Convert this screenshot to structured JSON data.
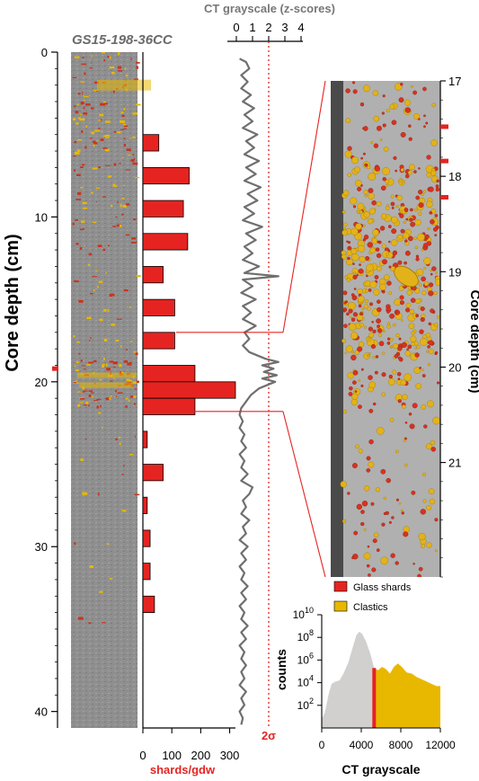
{
  "figure": {
    "core_label": "GS15-198-36CC",
    "depth_axis": {
      "label": "Core depth (cm)",
      "ticks": [
        "0",
        "10",
        "20",
        "30",
        "40"
      ],
      "range": [
        0,
        41
      ],
      "marker_depth": 19.2
    },
    "shards_axis": {
      "label": "shards/gdw",
      "ticks": [
        "0",
        "100",
        "200",
        "300"
      ],
      "range": [
        0,
        320
      ]
    },
    "ct_axis": {
      "label": "CT grayscale (z-scores)",
      "ticks": [
        "0",
        "1",
        "2",
        "3",
        "4"
      ],
      "range": [
        0,
        4
      ],
      "threshold_label": "2σ",
      "threshold_value": 2
    },
    "zoom": {
      "depth_label": "Core depth (cm)",
      "ticks": [
        "17",
        "18",
        "19",
        "20",
        "21"
      ],
      "range": [
        17,
        22.2
      ],
      "markers": [
        17.48,
        17.84,
        18.22
      ],
      "connector_depths": [
        17.0,
        21.8
      ]
    },
    "histogram": {
      "legend": [
        {
          "label": "Glass shards",
          "color": "#e52421"
        },
        {
          "label": "Clastics",
          "color": "#e8b800"
        }
      ],
      "ylabel": "counts",
      "xlabel": "CT grayscale",
      "xticks": [
        "0",
        "4000",
        "8000",
        "12000"
      ],
      "ybase": "10",
      "yexps": [
        "2",
        "4",
        "6",
        "8",
        "10"
      ],
      "xrange": [
        0,
        12000
      ],
      "glass_threshold": 5300,
      "curve": [
        [
          0,
          0.8
        ],
        [
          300,
          1.3
        ],
        [
          700,
          3.0
        ],
        [
          1000,
          3.9
        ],
        [
          1400,
          4.1
        ],
        [
          1800,
          4.2
        ],
        [
          2200,
          4.8
        ],
        [
          2700,
          5.8
        ],
        [
          3100,
          7.0
        ],
        [
          3500,
          8.2
        ],
        [
          3800,
          8.5
        ],
        [
          4100,
          8.3
        ],
        [
          4500,
          7.6
        ],
        [
          4900,
          6.6
        ],
        [
          5300,
          5.3
        ],
        [
          5700,
          5.1
        ],
        [
          6100,
          5.4
        ],
        [
          6500,
          5.2
        ],
        [
          6900,
          4.8
        ],
        [
          7300,
          5.4
        ],
        [
          7700,
          5.7
        ],
        [
          8100,
          5.4
        ],
        [
          8600,
          4.9
        ],
        [
          9100,
          4.8
        ],
        [
          9600,
          4.5
        ],
        [
          10100,
          4.3
        ],
        [
          10600,
          4.1
        ],
        [
          11100,
          3.9
        ],
        [
          11600,
          3.7
        ],
        [
          12000,
          3.7
        ]
      ]
    }
  },
  "chart_data": [
    {
      "type": "bar",
      "orientation": "horizontal",
      "title": "",
      "xlabel": "shards/gdw",
      "ylabel": "Core depth (cm)",
      "xlim": [
        0,
        320
      ],
      "ylim": [
        0,
        41
      ],
      "bars": [
        {
          "from": 5.0,
          "to": 6.0,
          "value": 55
        },
        {
          "from": 7.0,
          "to": 8.0,
          "value": 160
        },
        {
          "from": 9.0,
          "to": 10.0,
          "value": 140
        },
        {
          "from": 11.0,
          "to": 12.0,
          "value": 155
        },
        {
          "from": 13.0,
          "to": 14.0,
          "value": 70
        },
        {
          "from": 15.0,
          "to": 16.0,
          "value": 110
        },
        {
          "from": 17.0,
          "to": 18.0,
          "value": 110
        },
        {
          "from": 19.0,
          "to": 20.0,
          "value": 180
        },
        {
          "from": 20.0,
          "to": 21.0,
          "value": 320
        },
        {
          "from": 21.0,
          "to": 22.0,
          "value": 180
        },
        {
          "from": 23.0,
          "to": 24.0,
          "value": 15
        },
        {
          "from": 25.0,
          "to": 26.0,
          "value": 70
        },
        {
          "from": 27.0,
          "to": 28.0,
          "value": 15
        },
        {
          "from": 29.0,
          "to": 30.0,
          "value": 25
        },
        {
          "from": 31.0,
          "to": 32.0,
          "value": 25
        },
        {
          "from": 33.0,
          "to": 34.0,
          "value": 40
        }
      ]
    },
    {
      "type": "line",
      "title": "",
      "xlabel": "CT grayscale (z-scores)",
      "ylabel": "Core depth (cm)",
      "xlim": [
        0,
        4
      ],
      "ylim": [
        0,
        41
      ],
      "threshold": 2,
      "points": [
        [
          0.2,
          0.4
        ],
        [
          0.6,
          0.6
        ],
        [
          0.8,
          1.0
        ],
        [
          0.3,
          1.4
        ],
        [
          0.7,
          1.8
        ],
        [
          0.3,
          2.2
        ],
        [
          0.9,
          2.6
        ],
        [
          0.4,
          3.0
        ],
        [
          1.1,
          3.4
        ],
        [
          0.5,
          3.8
        ],
        [
          1.0,
          4.2
        ],
        [
          0.4,
          4.6
        ],
        [
          1.3,
          5.0
        ],
        [
          0.6,
          5.4
        ],
        [
          1.1,
          5.8
        ],
        [
          0.5,
          6.2
        ],
        [
          1.4,
          6.6
        ],
        [
          0.6,
          7.0
        ],
        [
          1.2,
          7.4
        ],
        [
          0.5,
          7.8
        ],
        [
          1.5,
          8.2
        ],
        [
          0.7,
          8.6
        ],
        [
          1.3,
          9.0
        ],
        [
          0.5,
          9.4
        ],
        [
          1.1,
          9.8
        ],
        [
          0.4,
          10.2
        ],
        [
          1.6,
          10.6
        ],
        [
          0.6,
          11.0
        ],
        [
          1.2,
          11.4
        ],
        [
          0.5,
          11.8
        ],
        [
          1.0,
          12.2
        ],
        [
          0.4,
          12.6
        ],
        [
          1.4,
          13.0
        ],
        [
          0.5,
          13.4
        ],
        [
          2.6,
          13.6
        ],
        [
          0.4,
          13.8
        ],
        [
          1.0,
          14.2
        ],
        [
          0.3,
          14.6
        ],
        [
          1.2,
          15.0
        ],
        [
          0.4,
          15.4
        ],
        [
          0.9,
          15.8
        ],
        [
          0.4,
          16.2
        ],
        [
          1.2,
          16.6
        ],
        [
          0.5,
          17.0
        ],
        [
          0.8,
          17.4
        ],
        [
          0.4,
          17.8
        ],
        [
          0.8,
          18.2
        ],
        [
          1.8,
          18.6
        ],
        [
          2.6,
          18.8
        ],
        [
          1.6,
          19.0
        ],
        [
          2.3,
          19.2
        ],
        [
          1.7,
          19.4
        ],
        [
          2.5,
          19.6
        ],
        [
          1.6,
          19.8
        ],
        [
          2.4,
          20.0
        ],
        [
          1.4,
          20.4
        ],
        [
          0.9,
          20.8
        ],
        [
          0.6,
          21.2
        ],
        [
          0.3,
          21.6
        ],
        [
          0.2,
          22.0
        ],
        [
          0.4,
          22.4
        ],
        [
          0.2,
          22.8
        ],
        [
          0.5,
          23.2
        ],
        [
          0.3,
          23.6
        ],
        [
          0.6,
          24.0
        ],
        [
          0.2,
          24.4
        ],
        [
          0.5,
          24.8
        ],
        [
          0.3,
          25.2
        ],
        [
          0.7,
          25.6
        ],
        [
          0.3,
          26.0
        ],
        [
          1.0,
          26.4
        ],
        [
          0.8,
          26.8
        ],
        [
          0.4,
          27.2
        ],
        [
          0.6,
          27.6
        ],
        [
          0.3,
          28.0
        ],
        [
          0.8,
          28.4
        ],
        [
          0.4,
          28.8
        ],
        [
          0.6,
          29.2
        ],
        [
          0.2,
          29.6
        ],
        [
          0.7,
          30.0
        ],
        [
          0.3,
          30.4
        ],
        [
          0.6,
          30.8
        ],
        [
          0.2,
          31.2
        ],
        [
          0.5,
          31.6
        ],
        [
          0.3,
          32.0
        ],
        [
          0.7,
          32.4
        ],
        [
          0.3,
          32.8
        ],
        [
          0.6,
          33.2
        ],
        [
          0.2,
          33.6
        ],
        [
          0.5,
          34.0
        ],
        [
          0.3,
          34.4
        ],
        [
          0.7,
          34.8
        ],
        [
          0.3,
          35.2
        ],
        [
          0.6,
          35.6
        ],
        [
          0.2,
          36.0
        ],
        [
          0.5,
          36.4
        ],
        [
          0.3,
          36.8
        ],
        [
          0.6,
          37.2
        ],
        [
          0.3,
          37.6
        ],
        [
          0.5,
          38.0
        ],
        [
          0.2,
          38.4
        ],
        [
          0.6,
          38.8
        ],
        [
          0.3,
          39.2
        ],
        [
          0.5,
          39.6
        ],
        [
          0.2,
          40.0
        ],
        [
          0.4,
          40.4
        ],
        [
          0.3,
          40.8
        ]
      ]
    }
  ]
}
